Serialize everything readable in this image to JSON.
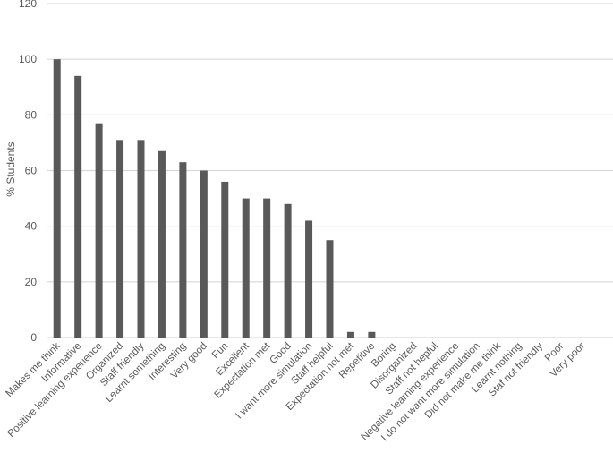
{
  "chart_data": {
    "type": "bar",
    "title": "",
    "xlabel": "",
    "ylabel": "% Students",
    "ylim": [
      0,
      120
    ],
    "yticks": [
      0,
      20,
      40,
      60,
      80,
      100,
      120
    ],
    "grid": true,
    "legend": null,
    "bar_color": "#595959",
    "grid_color": "#d9d9d9",
    "categories": [
      "Makes me think",
      "Informative",
      "Positive learning experience",
      "Organized",
      "Staff  friendly",
      "Learnt something",
      "Interesting",
      "Very good",
      "Fun",
      "Excellent",
      "Expectation met",
      "Good",
      "I want more simulation",
      "Staff helpful",
      "Expectation not met",
      "Repetitive",
      "Boring",
      "Disorganized",
      "Staff not hepful",
      "Negative learning experience",
      "I do not want more simulation",
      "Did not make me think",
      "Learnt nothing",
      "Staf not friendly",
      "Poor",
      "Very poor"
    ],
    "values": [
      100,
      94,
      77,
      71,
      71,
      67,
      63,
      60,
      56,
      50,
      50,
      48,
      42,
      35,
      2,
      2,
      0,
      0,
      0,
      0,
      0,
      0,
      0,
      0,
      0,
      0
    ]
  }
}
